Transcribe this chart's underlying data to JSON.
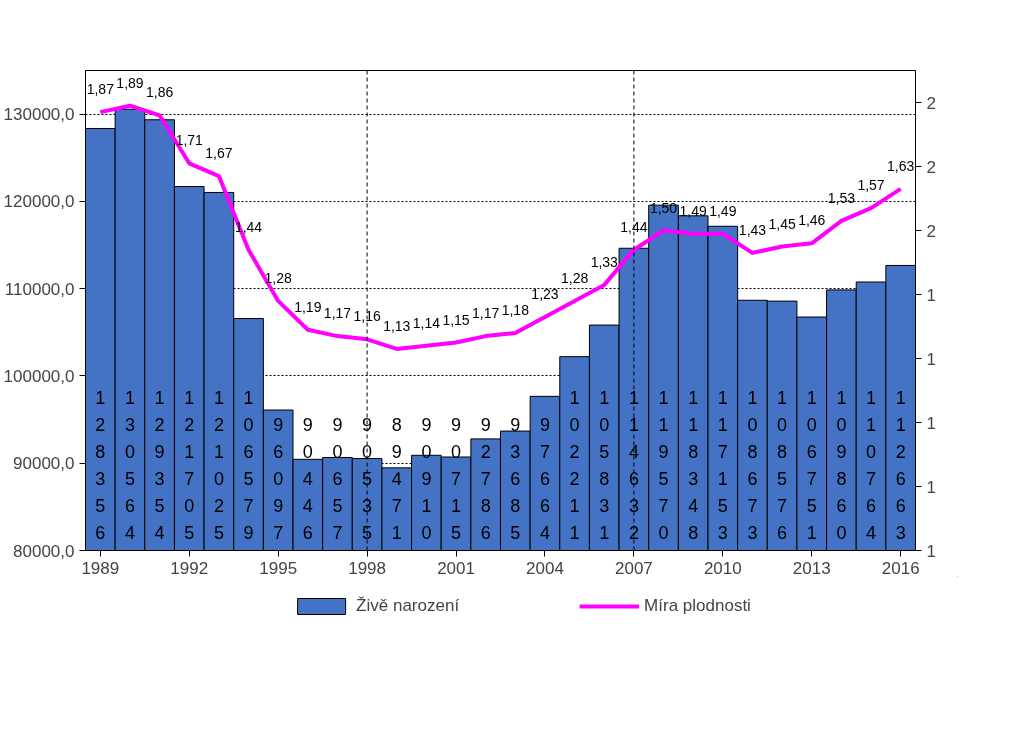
{
  "chart_data": {
    "type": "bar",
    "x": [
      1989,
      1990,
      1991,
      1992,
      1993,
      1994,
      1995,
      1996,
      1997,
      1998,
      1999,
      2000,
      2001,
      2002,
      2003,
      2004,
      2005,
      2006,
      2007,
      2008,
      2009,
      2010,
      2011,
      2012,
      2013,
      2014,
      2015,
      2016
    ],
    "series": [
      {
        "name": "Živě narození",
        "color": "#4472c4",
        "values": [
          128356,
          130564,
          129354,
          121705,
          121025,
          106579,
          96097,
          90446,
          90657,
          90535,
          89471,
          90910,
          90715,
          92786,
          93685,
          97664,
          102211,
          105831,
          114632,
          119570,
          118348,
          117153,
          108673,
          108576,
          106751,
          109860,
          110764,
          112663
        ],
        "value_labels": [
          "128356",
          "130564",
          "129354",
          "121705",
          "121025",
          "106579",
          "96097",
          "90446",
          "90657",
          "90535",
          "89471",
          "90910",
          "90715",
          "92786",
          "93685",
          "97664",
          "102211",
          "105831",
          "114632",
          "119570",
          "118348",
          "117153",
          "108673",
          "108576",
          "106751",
          "109860",
          "110764",
          "112663"
        ]
      },
      {
        "name": "Míra plodnosti",
        "type": "line",
        "axis": "y2",
        "color": "#ff00ff",
        "values": [
          1.87,
          1.89,
          1.86,
          1.71,
          1.67,
          1.44,
          1.28,
          1.19,
          1.17,
          1.16,
          1.13,
          1.14,
          1.15,
          1.17,
          1.18,
          1.23,
          1.28,
          1.33,
          1.44,
          1.5,
          1.49,
          1.49,
          1.43,
          1.45,
          1.46,
          1.53,
          1.57,
          1.63
        ],
        "value_labels": [
          "1,87",
          "1,89",
          "1,86",
          "1,71",
          "1,67",
          "1,44",
          "1,28",
          "1,19",
          "1,17",
          "1,16",
          "1,13",
          "1,14",
          "1,15",
          "1,17",
          "1,18",
          "1,23",
          "1,28",
          "1,33",
          "1,44",
          "1,50",
          "1,49",
          "1,49",
          "1,43",
          "1,45",
          "1,46",
          "1,53",
          "1,57",
          "1,63"
        ]
      }
    ],
    "xlim": [
      1988.5,
      2016.5
    ],
    "xticks": [
      1989,
      1992,
      1995,
      1998,
      2001,
      2004,
      2007,
      2010,
      2013,
      2016
    ],
    "ylim": [
      80000,
      135000
    ],
    "yticks": [
      {
        "value": 80000,
        "label": "80000,0"
      },
      {
        "value": 90000,
        "label": "90000,0"
      },
      {
        "value": 100000,
        "label": "100000,0"
      },
      {
        "value": 110000,
        "label": "110000,0"
      },
      {
        "value": 120000,
        "label": "120000,0"
      },
      {
        "value": 130000,
        "label": "130000,0"
      }
    ],
    "y2lim": [
      0.5,
      2.0
    ],
    "y2ticks": [
      {
        "value": 0.5,
        "label": "1"
      },
      {
        "value": 0.7,
        "label": "1"
      },
      {
        "value": 0.9,
        "label": "1"
      },
      {
        "value": 1.1,
        "label": "1"
      },
      {
        "value": 1.3,
        "label": "1"
      },
      {
        "value": 1.5,
        "label": "2"
      },
      {
        "value": 1.7,
        "label": "2"
      },
      {
        "value": 1.9,
        "label": "2"
      }
    ],
    "grid": "y",
    "ref_lines": [
      {
        "axis": "x",
        "value": 1998,
        "color": "#000000",
        "line_style": "dashed"
      },
      {
        "axis": "x",
        "value": 2007,
        "color": "#000000",
        "line_style": "dashed"
      }
    ],
    "legend": "bottom"
  }
}
